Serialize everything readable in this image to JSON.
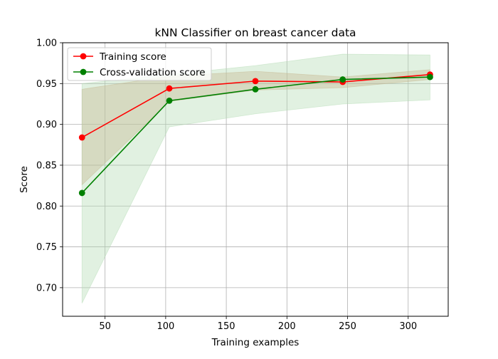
{
  "chart_data": {
    "type": "line",
    "title": "kNN Classifier on breast cancer data",
    "xlabel": "Training examples",
    "ylabel": "Score",
    "xlim": [
      15,
      333
    ],
    "ylim": [
      0.665,
      1.0
    ],
    "xticks": [
      50,
      100,
      150,
      200,
      250,
      300
    ],
    "xtick_labels": [
      "50",
      "100",
      "150",
      "200",
      "250",
      "300"
    ],
    "yticks": [
      0.7,
      0.75,
      0.8,
      0.85,
      0.9,
      0.95,
      1.0
    ],
    "ytick_labels": [
      "0.70",
      "0.75",
      "0.80",
      "0.85",
      "0.90",
      "0.95",
      "1.00"
    ],
    "grid": true,
    "legend_position": "top-left",
    "x": [
      31,
      103,
      174,
      246,
      318
    ],
    "series": [
      {
        "name": "Training score",
        "color": "#ff0000",
        "fill_color": "#d2a07a",
        "values": [
          0.884,
          0.944,
          0.953,
          0.952,
          0.961
        ],
        "lower": [
          0.826,
          0.928,
          0.942,
          0.945,
          0.955
        ],
        "upper": [
          0.943,
          0.959,
          0.965,
          0.958,
          0.967
        ]
      },
      {
        "name": "Cross-validation score",
        "color": "#008000",
        "fill_color": "#b3dbb3",
        "values": [
          0.816,
          0.929,
          0.943,
          0.955,
          0.958
        ],
        "lower": [
          0.681,
          0.897,
          0.913,
          0.925,
          0.93
        ],
        "upper": [
          0.95,
          0.961,
          0.972,
          0.986,
          0.985
        ]
      }
    ]
  }
}
